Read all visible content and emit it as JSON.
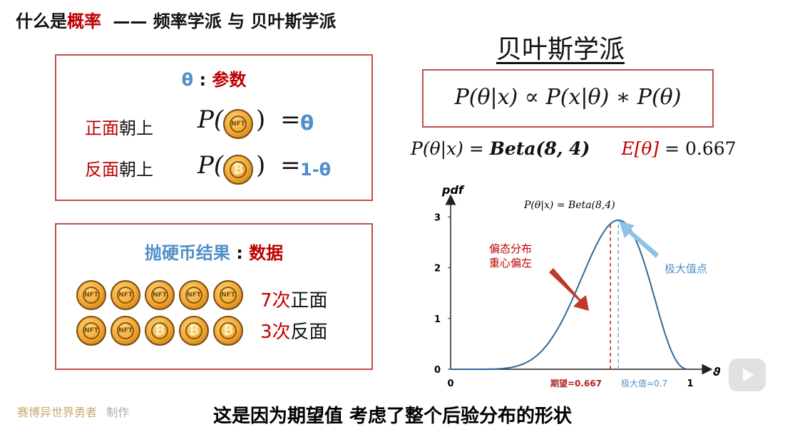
{
  "title": {
    "prefix": "什么是",
    "highlight": "概率",
    "suffix": "—— 频率学派 与 贝叶斯学派"
  },
  "param_box": {
    "theta": "θ",
    "colon": ":",
    "label": "参数",
    "heads_red": "正面",
    "heads_black": "朝上",
    "tails_red": "反面",
    "tails_black": "朝上",
    "heads_value": "θ",
    "tails_value": "1-θ",
    "p": "P(",
    "close": ")",
    "eq": "="
  },
  "data_box": {
    "label_blue": "抛硬币结果",
    "colon": ":",
    "label_red": "数据",
    "heads_count": "7次",
    "heads_text": "正面",
    "tails_count": "3次",
    "tails_text": "反面",
    "row1": [
      "head",
      "head",
      "head",
      "head",
      "head"
    ],
    "row2": [
      "head",
      "head",
      "tail",
      "tail",
      "tail"
    ]
  },
  "bayes": {
    "title": "贝叶斯学派",
    "formula": "P(θ|x) ∝ P(x|θ) ∗ P(θ)",
    "posterior_lhs": "P(θ|x) = ",
    "posterior_rhs": "Beta(8, 4)",
    "expect_red": "E[θ]",
    "expect_rest": " = 0.667"
  },
  "chart_data": {
    "type": "line",
    "series": [
      {
        "name": "P(θ|x) = Beta(8,4)",
        "distribution": "Beta(8,4)"
      }
    ],
    "ylabel": "pdf",
    "xlabel": "ϑ",
    "xlim": [
      0,
      1
    ],
    "ylim": [
      0,
      3.2
    ],
    "x_ticks": [
      "0",
      "1"
    ],
    "y_ticks": [
      "0",
      "1",
      "2",
      "3"
    ],
    "annotations": {
      "curve_label": "P(θ|x) = Beta(8,4)",
      "skew_line1": "偏态分布",
      "skew_line2": "重心偏左",
      "max_point": "极大值点",
      "mean_label": "期望=0.667",
      "mode_label": "极大值=0.7"
    },
    "mean": 0.667,
    "mode": 0.7,
    "colors": {
      "curve": "#2e6a9e",
      "mean": "#b22222",
      "mode": "#6fa7d6",
      "axis": "#222222"
    }
  },
  "footer": {
    "author": "赛博异世界勇者",
    "made": "制作"
  },
  "subtitle": "这是因为期望值 考虑了整个后验分布的形状"
}
